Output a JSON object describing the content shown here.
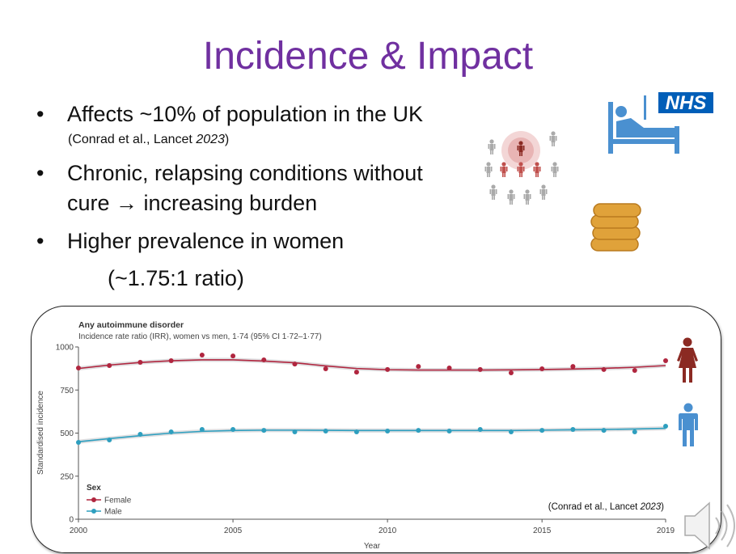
{
  "slide": {
    "title": "Incidence & Impact",
    "bullets": [
      {
        "text": "Affects ~10% of population in the UK",
        "citation_prefix": "(Conrad et al., Lancet ",
        "citation_year": "2023",
        "citation_suffix": ")"
      },
      {
        "text_line1": "Chronic, relapsing conditions without",
        "text_line2": "cure → increasing burden"
      },
      {
        "text": "Higher prevalence in women",
        "sub": "(~1.75:1 ratio)"
      }
    ],
    "bullet_symbol": "•",
    "icons": [
      "people-network-icon",
      "nhs-hospital-bed-icon",
      "coin-stack-icon",
      "female-person-icon",
      "male-person-icon",
      "speaker-icon"
    ],
    "nhs_logo": "NHS",
    "colors": {
      "title": "#7030A0",
      "female": "#B0263F",
      "male": "#2E9FBF",
      "female_icon": "#8B2A23",
      "male_icon": "#4A90D0",
      "nhs": "#005EB8"
    }
  },
  "chart_data": {
    "type": "line",
    "title": "Any autoimmune disorder",
    "subtitle": "Incidence rate ratio (IRR), women vs men, 1·74 (95% CI 1·72–1·77)",
    "xlabel": "Year",
    "ylabel": "Standardised incidence",
    "xlim": [
      2000,
      2019
    ],
    "ylim": [
      0,
      1000
    ],
    "xticks": [
      "2000",
      "2005",
      "2010",
      "2015",
      "2019"
    ],
    "yticks": [
      "0",
      "250",
      "500",
      "750",
      "1000"
    ],
    "legend_title": "Sex",
    "legend_position": "bottom-left",
    "grid": false,
    "citation_prefix": "(Conrad et al., Lancet ",
    "citation_year": "2023",
    "citation_suffix": ")",
    "x": [
      2000,
      2001,
      2002,
      2003,
      2004,
      2005,
      2006,
      2007,
      2008,
      2009,
      2010,
      2011,
      2012,
      2013,
      2014,
      2015,
      2016,
      2017,
      2018,
      2019
    ],
    "series": [
      {
        "name": "Female",
        "color": "#B0263F",
        "values": [
          878,
          892,
          911,
          920,
          953,
          948,
          925,
          901,
          873,
          854,
          869,
          887,
          878,
          869,
          850,
          873,
          887,
          869,
          864,
          920
        ],
        "fit": [
          875,
          895,
          910,
          920,
          925,
          925,
          918,
          908,
          890,
          875,
          868,
          866,
          866,
          866,
          867,
          869,
          872,
          876,
          882,
          892
        ]
      },
      {
        "name": "Male",
        "color": "#2E9FBF",
        "values": [
          446,
          460,
          493,
          507,
          521,
          521,
          516,
          507,
          512,
          507,
          512,
          516,
          512,
          521,
          507,
          516,
          521,
          516,
          507,
          540
        ],
        "fit": [
          450,
          468,
          485,
          500,
          510,
          515,
          517,
          517,
          516,
          515,
          515,
          515,
          515,
          515,
          515,
          517,
          519,
          521,
          524,
          528
        ]
      }
    ]
  }
}
